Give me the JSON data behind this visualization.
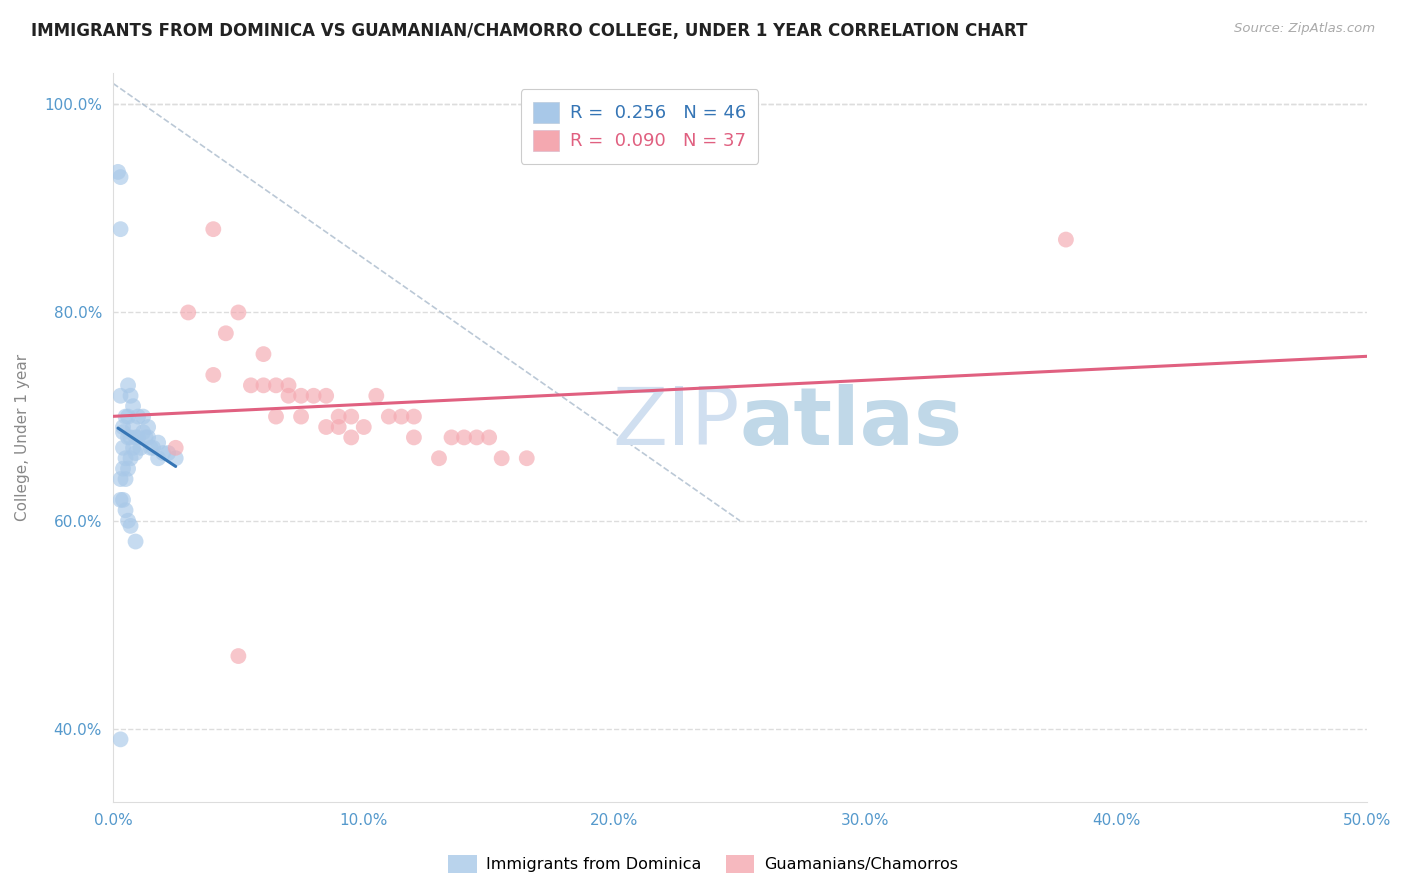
{
  "title": "IMMIGRANTS FROM DOMINICA VS GUAMANIAN/CHAMORRO COLLEGE, UNDER 1 YEAR CORRELATION CHART",
  "source": "Source: ZipAtlas.com",
  "xlabel": "",
  "ylabel": "College, Under 1 year",
  "xlim": [
    0.0,
    0.5
  ],
  "ylim": [
    0.33,
    1.03
  ],
  "xticks": [
    0.0,
    0.1,
    0.2,
    0.3,
    0.4,
    0.5
  ],
  "xticklabels": [
    "0.0%",
    "10.0%",
    "20.0%",
    "30.0%",
    "40.0%",
    "50.0%"
  ],
  "yticks": [
    0.4,
    0.6,
    0.8,
    1.0
  ],
  "yticklabels": [
    "40.0%",
    "60.0%",
    "80.0%",
    "100.0%"
  ],
  "blue_R": 0.256,
  "blue_N": 46,
  "pink_R": 0.09,
  "pink_N": 37,
  "blue_color": "#a8c8e8",
  "pink_color": "#f4a8b0",
  "blue_line_color": "#3575b5",
  "pink_line_color": "#e06080",
  "legend1_label": "Immigrants from Dominica",
  "legend2_label": "Guamanians/Chamorros",
  "blue_x": [
    0.002,
    0.003,
    0.003,
    0.003,
    0.003,
    0.004,
    0.004,
    0.004,
    0.004,
    0.005,
    0.005,
    0.005,
    0.006,
    0.006,
    0.006,
    0.006,
    0.007,
    0.007,
    0.007,
    0.008,
    0.008,
    0.008,
    0.009,
    0.009,
    0.01,
    0.01,
    0.011,
    0.012,
    0.012,
    0.013,
    0.014,
    0.014,
    0.015,
    0.016,
    0.018,
    0.018,
    0.02,
    0.022,
    0.025,
    0.003,
    0.004,
    0.005,
    0.006,
    0.007,
    0.009,
    0.003
  ],
  "blue_y": [
    0.935,
    0.93,
    0.88,
    0.72,
    0.64,
    0.69,
    0.685,
    0.67,
    0.65,
    0.7,
    0.66,
    0.64,
    0.73,
    0.7,
    0.68,
    0.65,
    0.72,
    0.68,
    0.66,
    0.71,
    0.69,
    0.67,
    0.68,
    0.665,
    0.7,
    0.68,
    0.67,
    0.7,
    0.685,
    0.68,
    0.69,
    0.68,
    0.67,
    0.67,
    0.675,
    0.66,
    0.665,
    0.665,
    0.66,
    0.62,
    0.62,
    0.61,
    0.6,
    0.595,
    0.58,
    0.39
  ],
  "pink_x": [
    0.03,
    0.04,
    0.04,
    0.045,
    0.05,
    0.055,
    0.06,
    0.06,
    0.065,
    0.065,
    0.07,
    0.07,
    0.075,
    0.075,
    0.08,
    0.085,
    0.085,
    0.09,
    0.09,
    0.095,
    0.095,
    0.1,
    0.105,
    0.11,
    0.115,
    0.12,
    0.12,
    0.13,
    0.135,
    0.14,
    0.145,
    0.15,
    0.155,
    0.165,
    0.025,
    0.05,
    0.38
  ],
  "pink_y": [
    0.8,
    0.88,
    0.74,
    0.78,
    0.8,
    0.73,
    0.76,
    0.73,
    0.7,
    0.73,
    0.73,
    0.72,
    0.72,
    0.7,
    0.72,
    0.69,
    0.72,
    0.69,
    0.7,
    0.68,
    0.7,
    0.69,
    0.72,
    0.7,
    0.7,
    0.68,
    0.7,
    0.66,
    0.68,
    0.68,
    0.68,
    0.68,
    0.66,
    0.66,
    0.67,
    0.47,
    0.87
  ],
  "ref_line_x": [
    0.0,
    0.25
  ],
  "ref_line_y": [
    1.02,
    0.6
  ],
  "title_color": "#222222",
  "title_fontsize": 12,
  "axis_label_color": "#888888",
  "tick_color": "#5599cc",
  "source_color": "#aaaaaa",
  "background_color": "#ffffff",
  "grid_color": "#dddddd",
  "watermark_color": "#d0dff0",
  "watermark_text": "ZIPatlas"
}
